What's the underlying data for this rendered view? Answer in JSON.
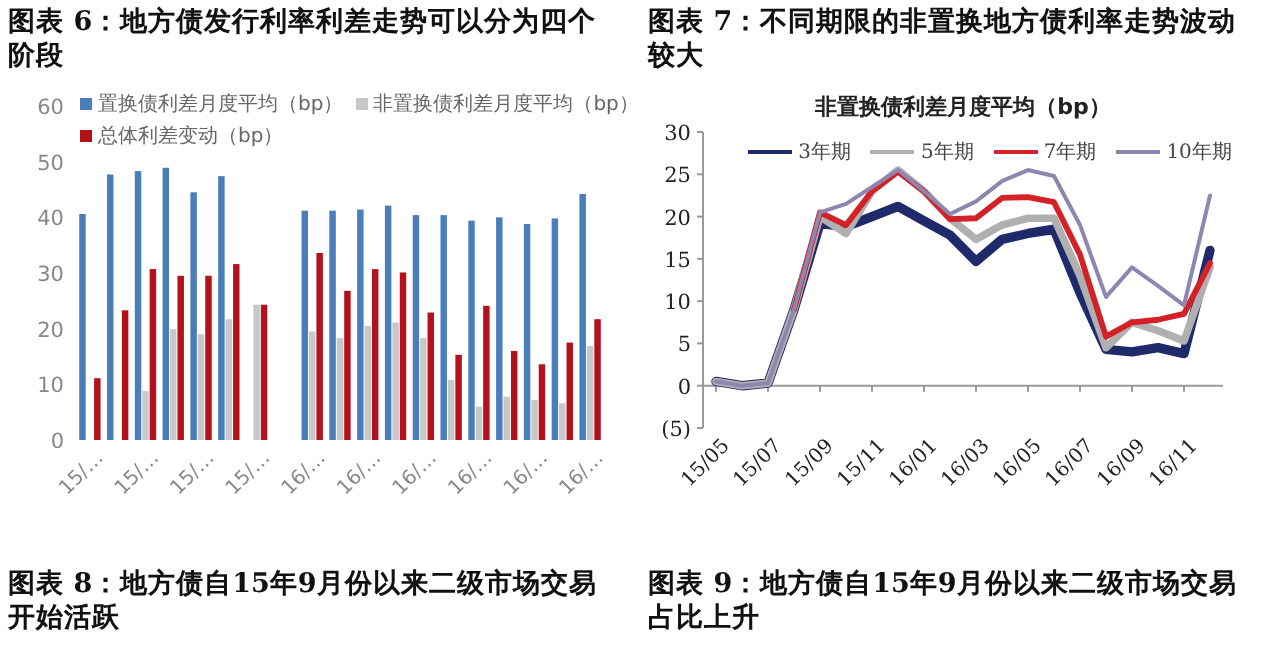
{
  "chart_data": [
    {
      "type": "bar",
      "title": "图表 6：地方债发行利率利差走势可以分为四个阶段",
      "categories": [
        "15/…",
        null,
        "15/…",
        null,
        "15/…",
        null,
        "15/…",
        null,
        "16/…",
        null,
        "16/…",
        null,
        "16/…",
        null,
        "16/…",
        null,
        "16/…",
        null,
        "16/…"
      ],
      "series": [
        {
          "name": "置换债利差月度平均（bp）",
          "color": "#4a7ebb",
          "values": [
            40.6,
            47.7,
            48.3,
            48.9,
            44.5,
            47.4,
            null,
            null,
            41.2,
            41.2,
            41.4,
            42.1,
            40.4,
            40.4,
            39.4,
            40,
            38.8,
            39.8,
            44.2
          ]
        },
        {
          "name": "非置换债利差月度平均（bp）",
          "color": "#c8c8c8",
          "values": [
            null,
            null,
            8.8,
            19.9,
            19,
            21.7,
            24.3,
            null,
            19.5,
            18.3,
            20.5,
            21.1,
            18.3,
            10.8,
            6,
            7.8,
            7.2,
            6.6,
            16.9
          ]
        },
        {
          "name": "总体利差变动（bp）",
          "color": "#b3121b",
          "values": [
            11.1,
            23.3,
            30.7,
            29.5,
            29.5,
            31.6,
            24.3,
            null,
            33.6,
            26.8,
            30.7,
            30.1,
            22.9,
            15.3,
            24.1,
            16,
            13.6,
            17.5,
            21.7
          ]
        }
      ],
      "ylim": [
        0,
        60
      ],
      "yticks": [
        0,
        10,
        20,
        30,
        40,
        50,
        60
      ],
      "legend": "top left",
      "grid": false,
      "annotations": [
        "图表 8：地方债自15年9月份以来二级市场交易开始活跃"
      ]
    },
    {
      "type": "line",
      "title": "图表 7：不同期限的非置换地方债利率走势波动较大",
      "subtitle": "非置换债利差月度平均（bp）",
      "categories": [
        "15/05",
        null,
        "15/07",
        null,
        "15/09",
        null,
        "15/11",
        null,
        "16/01",
        null,
        "16/03",
        null,
        "16/05",
        null,
        "16/07",
        null,
        "16/09",
        null,
        "16/11",
        null
      ],
      "series": [
        {
          "name": "3年期",
          "color": "#1f2a6b",
          "values": [
            0.5,
            0,
            0.3,
            9,
            19.2,
            18.8,
            20,
            21.2,
            19.5,
            17.8,
            14.7,
            17.3,
            18,
            18.5,
            11,
            4.3,
            4,
            4.5,
            3.8,
            16
          ]
        },
        {
          "name": "5年期",
          "color": "#b0b0b0",
          "values": [
            0.5,
            0,
            0.3,
            9,
            20,
            18,
            23,
            25.5,
            23,
            19.8,
            17.3,
            19,
            19.8,
            19.8,
            13,
            4.5,
            7.5,
            6.5,
            5.3,
            14
          ]
        },
        {
          "name": "7年期",
          "color": "#d42027",
          "values": [
            null,
            null,
            null,
            9,
            20.5,
            19,
            23,
            25.3,
            23,
            19.7,
            19.8,
            22.2,
            22.3,
            21.7,
            15.5,
            5.8,
            7.5,
            7.8,
            8.5,
            14.5
          ]
        },
        {
          "name": "10年期",
          "color": "#8f86b0",
          "values": [
            0.5,
            0,
            0.3,
            9,
            20.5,
            21.5,
            23.5,
            25.5,
            23,
            20.3,
            21.8,
            24.2,
            25.5,
            24.8,
            19,
            10.5,
            14,
            11.8,
            9.5,
            22.5
          ]
        }
      ],
      "ylim": [
        -5,
        30
      ],
      "yticks": [
        {
          "value": -5,
          "label": "(5)"
        },
        0,
        5,
        10,
        15,
        20,
        25,
        30
      ],
      "legend": "top",
      "grid": false,
      "annotations": [
        "图表 9：地方债自15年9月份以来二级市场交易占比上升"
      ]
    }
  ]
}
